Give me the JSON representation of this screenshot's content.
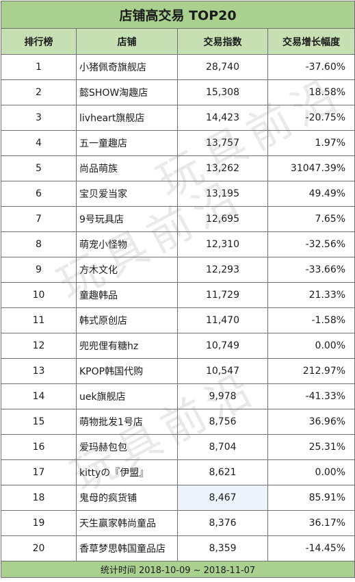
{
  "title": "店铺高交易 TOP20",
  "headers": [
    "排行榜",
    "店铺",
    "交易指数",
    "交易增长幅度"
  ],
  "rows": [
    {
      "rank": "1",
      "shop": "小猪佩奇旗舰店",
      "index": "28,740",
      "growth": "-37.60%",
      "trend": "neg"
    },
    {
      "rank": "2",
      "shop": "懿SHOW淘趣店",
      "index": "15,308",
      "growth": "18.58%",
      "trend": "neu"
    },
    {
      "rank": "3",
      "shop": "livheart旗舰店",
      "index": "14,423",
      "growth": "-20.75%",
      "trend": "neu"
    },
    {
      "rank": "4",
      "shop": "五一童趣店",
      "index": "13,757",
      "growth": "1.97%",
      "trend": "neu"
    },
    {
      "rank": "5",
      "shop": "尚品萌族",
      "index": "13,262",
      "growth": "31047.39%",
      "trend": "pos"
    },
    {
      "rank": "6",
      "shop": "宝贝爱当家",
      "index": "13,195",
      "growth": "49.49%",
      "trend": "pos"
    },
    {
      "rank": "7",
      "shop": "9号玩具店",
      "index": "12,695",
      "growth": "7.65%",
      "trend": "neu"
    },
    {
      "rank": "8",
      "shop": "萌宠小怪物",
      "index": "12,310",
      "growth": "-32.56%",
      "trend": "neg"
    },
    {
      "rank": "9",
      "shop": "方木文化",
      "index": "12,293",
      "growth": "-33.66%",
      "trend": "neg"
    },
    {
      "rank": "10",
      "shop": "童趣韩品",
      "index": "11,729",
      "growth": "21.33%",
      "trend": "neu"
    },
    {
      "rank": "11",
      "shop": "韩式原创店",
      "index": "11,470",
      "growth": "-1.58%",
      "trend": "neu"
    },
    {
      "rank": "12",
      "shop": "兜兜俚有糖hz",
      "index": "10,749",
      "growth": "0.00%",
      "trend": "neu"
    },
    {
      "rank": "13",
      "shop": "KPOP韩国代购",
      "index": "10,547",
      "growth": "212.97%",
      "trend": "pos"
    },
    {
      "rank": "14",
      "shop": "uek旗舰店",
      "index": "9,978",
      "growth": "-41.33%",
      "trend": "neg"
    },
    {
      "rank": "15",
      "shop": "萌物批发1号店",
      "index": "8,756",
      "growth": "36.96%",
      "trend": "pos"
    },
    {
      "rank": "16",
      "shop": "爱玛赫包包",
      "index": "8,704",
      "growth": "25.31%",
      "trend": "neu"
    },
    {
      "rank": "17",
      "shop": "kittyの『伊盟』",
      "index": "8,621",
      "growth": "0.00%",
      "trend": "neu"
    },
    {
      "rank": "18",
      "shop": "鬼母的疯货铺",
      "index": "8,467",
      "growth": "85.91%",
      "trend": "pos",
      "highlight": true
    },
    {
      "rank": "19",
      "shop": "天生赢家韩尚童品",
      "index": "8,376",
      "growth": "36.17%",
      "trend": "pos"
    },
    {
      "rank": "20",
      "shop": "香草梦思韩国童品店",
      "index": "8,359",
      "growth": "-14.45%",
      "trend": "neu"
    }
  ],
  "footer": "统计时间 2018-10-09 ~ 2018-11-07",
  "watermark": "玩具前沿",
  "colors": {
    "header_bg": "#a9d08e",
    "subheader_bg": "#c6e0b4",
    "positive": "#e0282e",
    "negative": "#2e9a43"
  }
}
